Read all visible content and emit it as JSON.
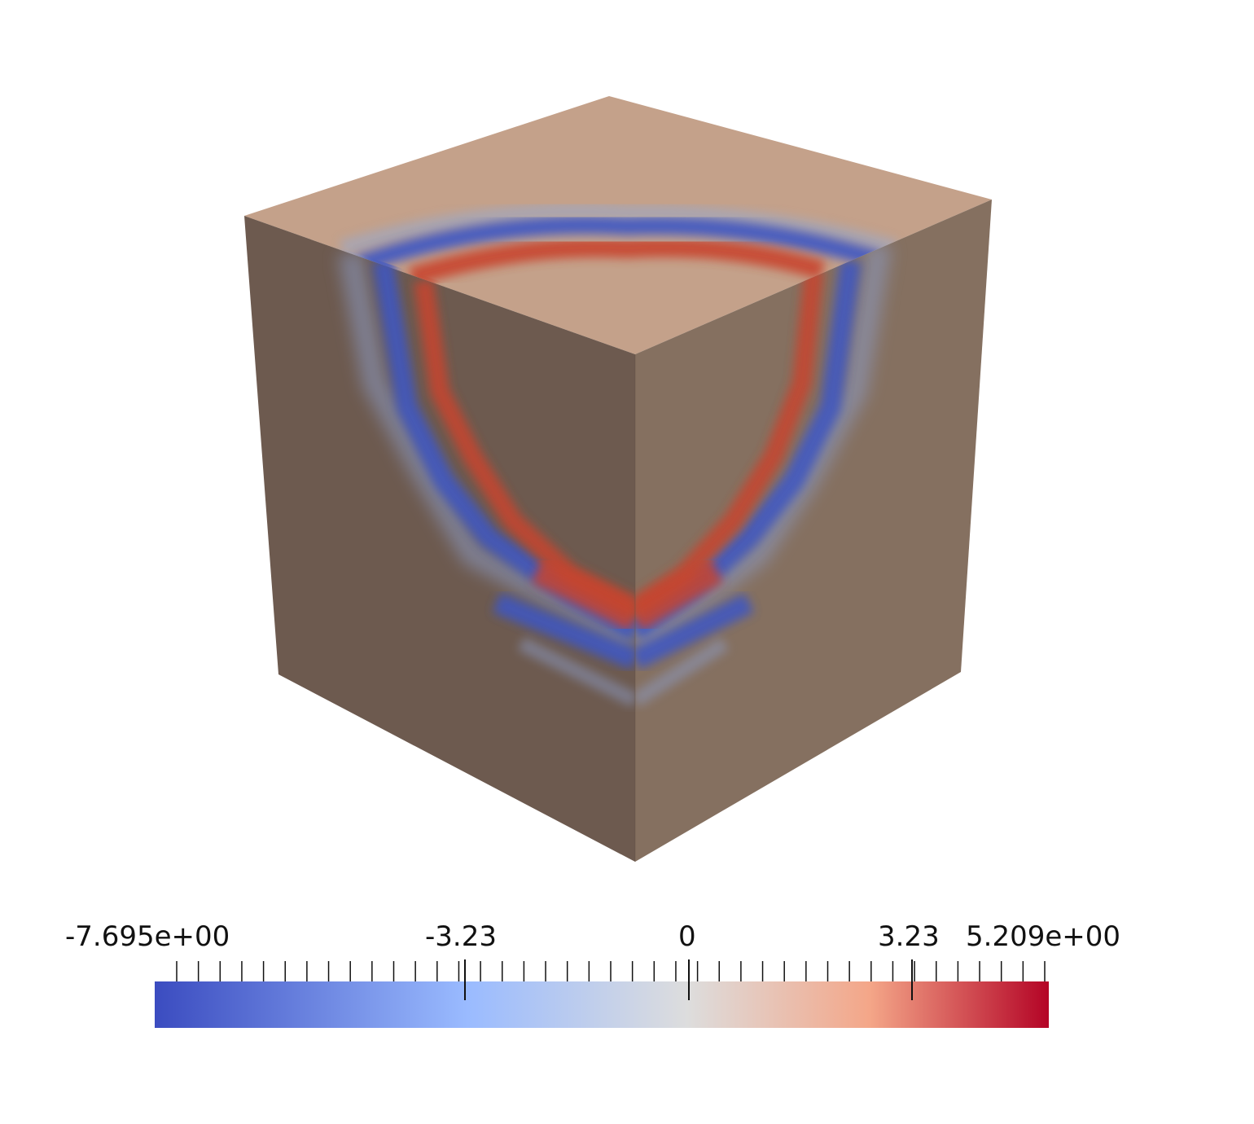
{
  "colorbar": {
    "min_label": "-7.695e+00",
    "max_label": "5.209e+00",
    "ticks": [
      "-3.23",
      "0",
      "3.23"
    ],
    "range": [
      -7.695,
      5.209
    ],
    "tick_values": [
      -3.23,
      0,
      3.23
    ],
    "colors": [
      "#3b4cc0",
      "#9abbff",
      "#dddddd",
      "#f4a688",
      "#b40426"
    ]
  },
  "cube": {
    "top_face_color": "#c4a18a",
    "left_face_color": "#6d5a4f",
    "right_face_color": "#857060",
    "wave_positive_color": "#c8442e",
    "wave_negative_color": "#3c56c4"
  }
}
